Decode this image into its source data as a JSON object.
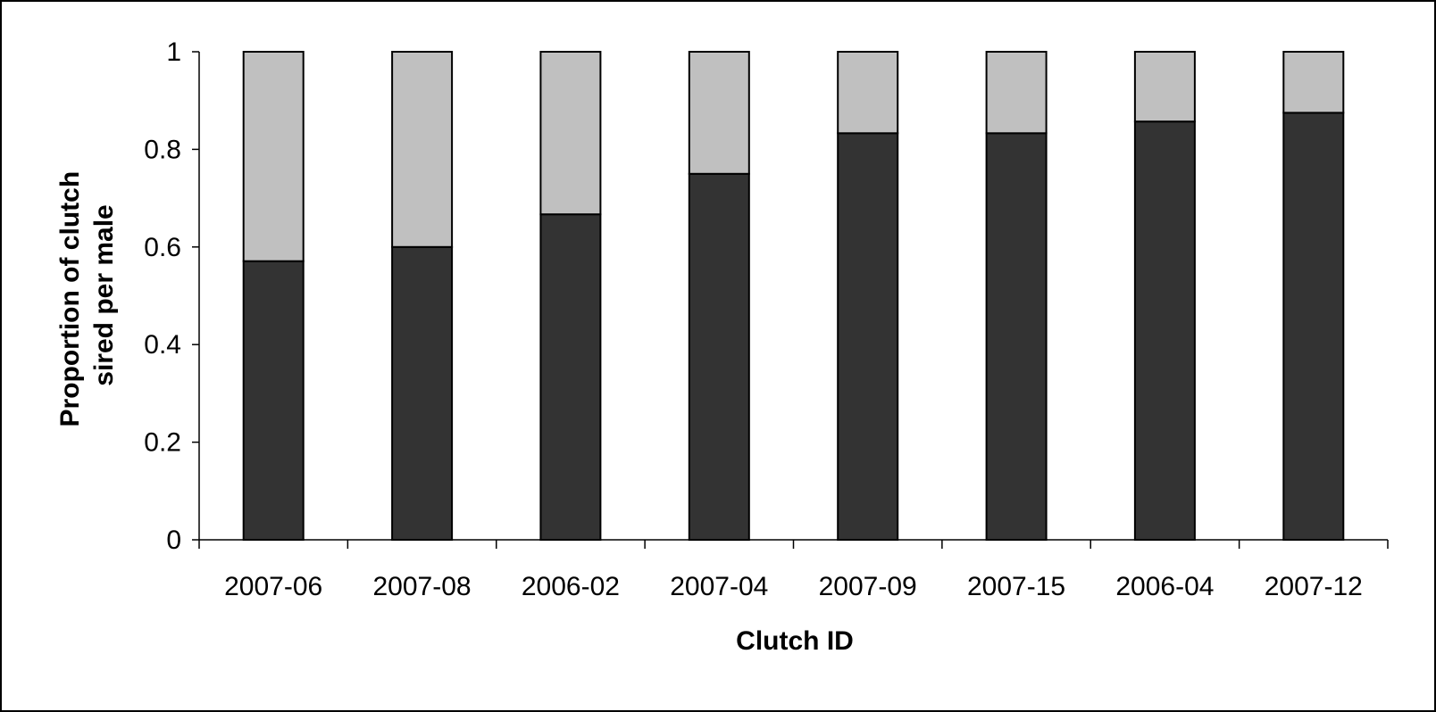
{
  "chart_data": {
    "type": "bar",
    "stacked": true,
    "title": "",
    "xlabel": "Clutch ID",
    "ylabel_lines": [
      "Proportion of clutch",
      "sired per male"
    ],
    "ylim": [
      0,
      1
    ],
    "yticks": [
      {
        "value": 0,
        "label": "0"
      },
      {
        "value": 0.2,
        "label": "0.2"
      },
      {
        "value": 0.4,
        "label": "0.4"
      },
      {
        "value": 0.6,
        "label": "0.6"
      },
      {
        "value": 0.8,
        "label": "0.8"
      },
      {
        "value": 1,
        "label": "1"
      }
    ],
    "grid": false,
    "legend": "none",
    "categories": [
      "2007-06",
      "2007-08",
      "2006-02",
      "2007-04",
      "2007-09",
      "2007-15",
      "2006-04",
      "2007-12"
    ],
    "series": [
      {
        "values": [
          0.571,
          0.6,
          0.667,
          0.75,
          0.833,
          0.833,
          0.857,
          0.875
        ],
        "color": "#333333"
      },
      {
        "values": [
          0.429,
          0.4,
          0.333,
          0.25,
          0.167,
          0.167,
          0.143,
          0.125
        ],
        "color": "#c0c0c0"
      }
    ]
  }
}
